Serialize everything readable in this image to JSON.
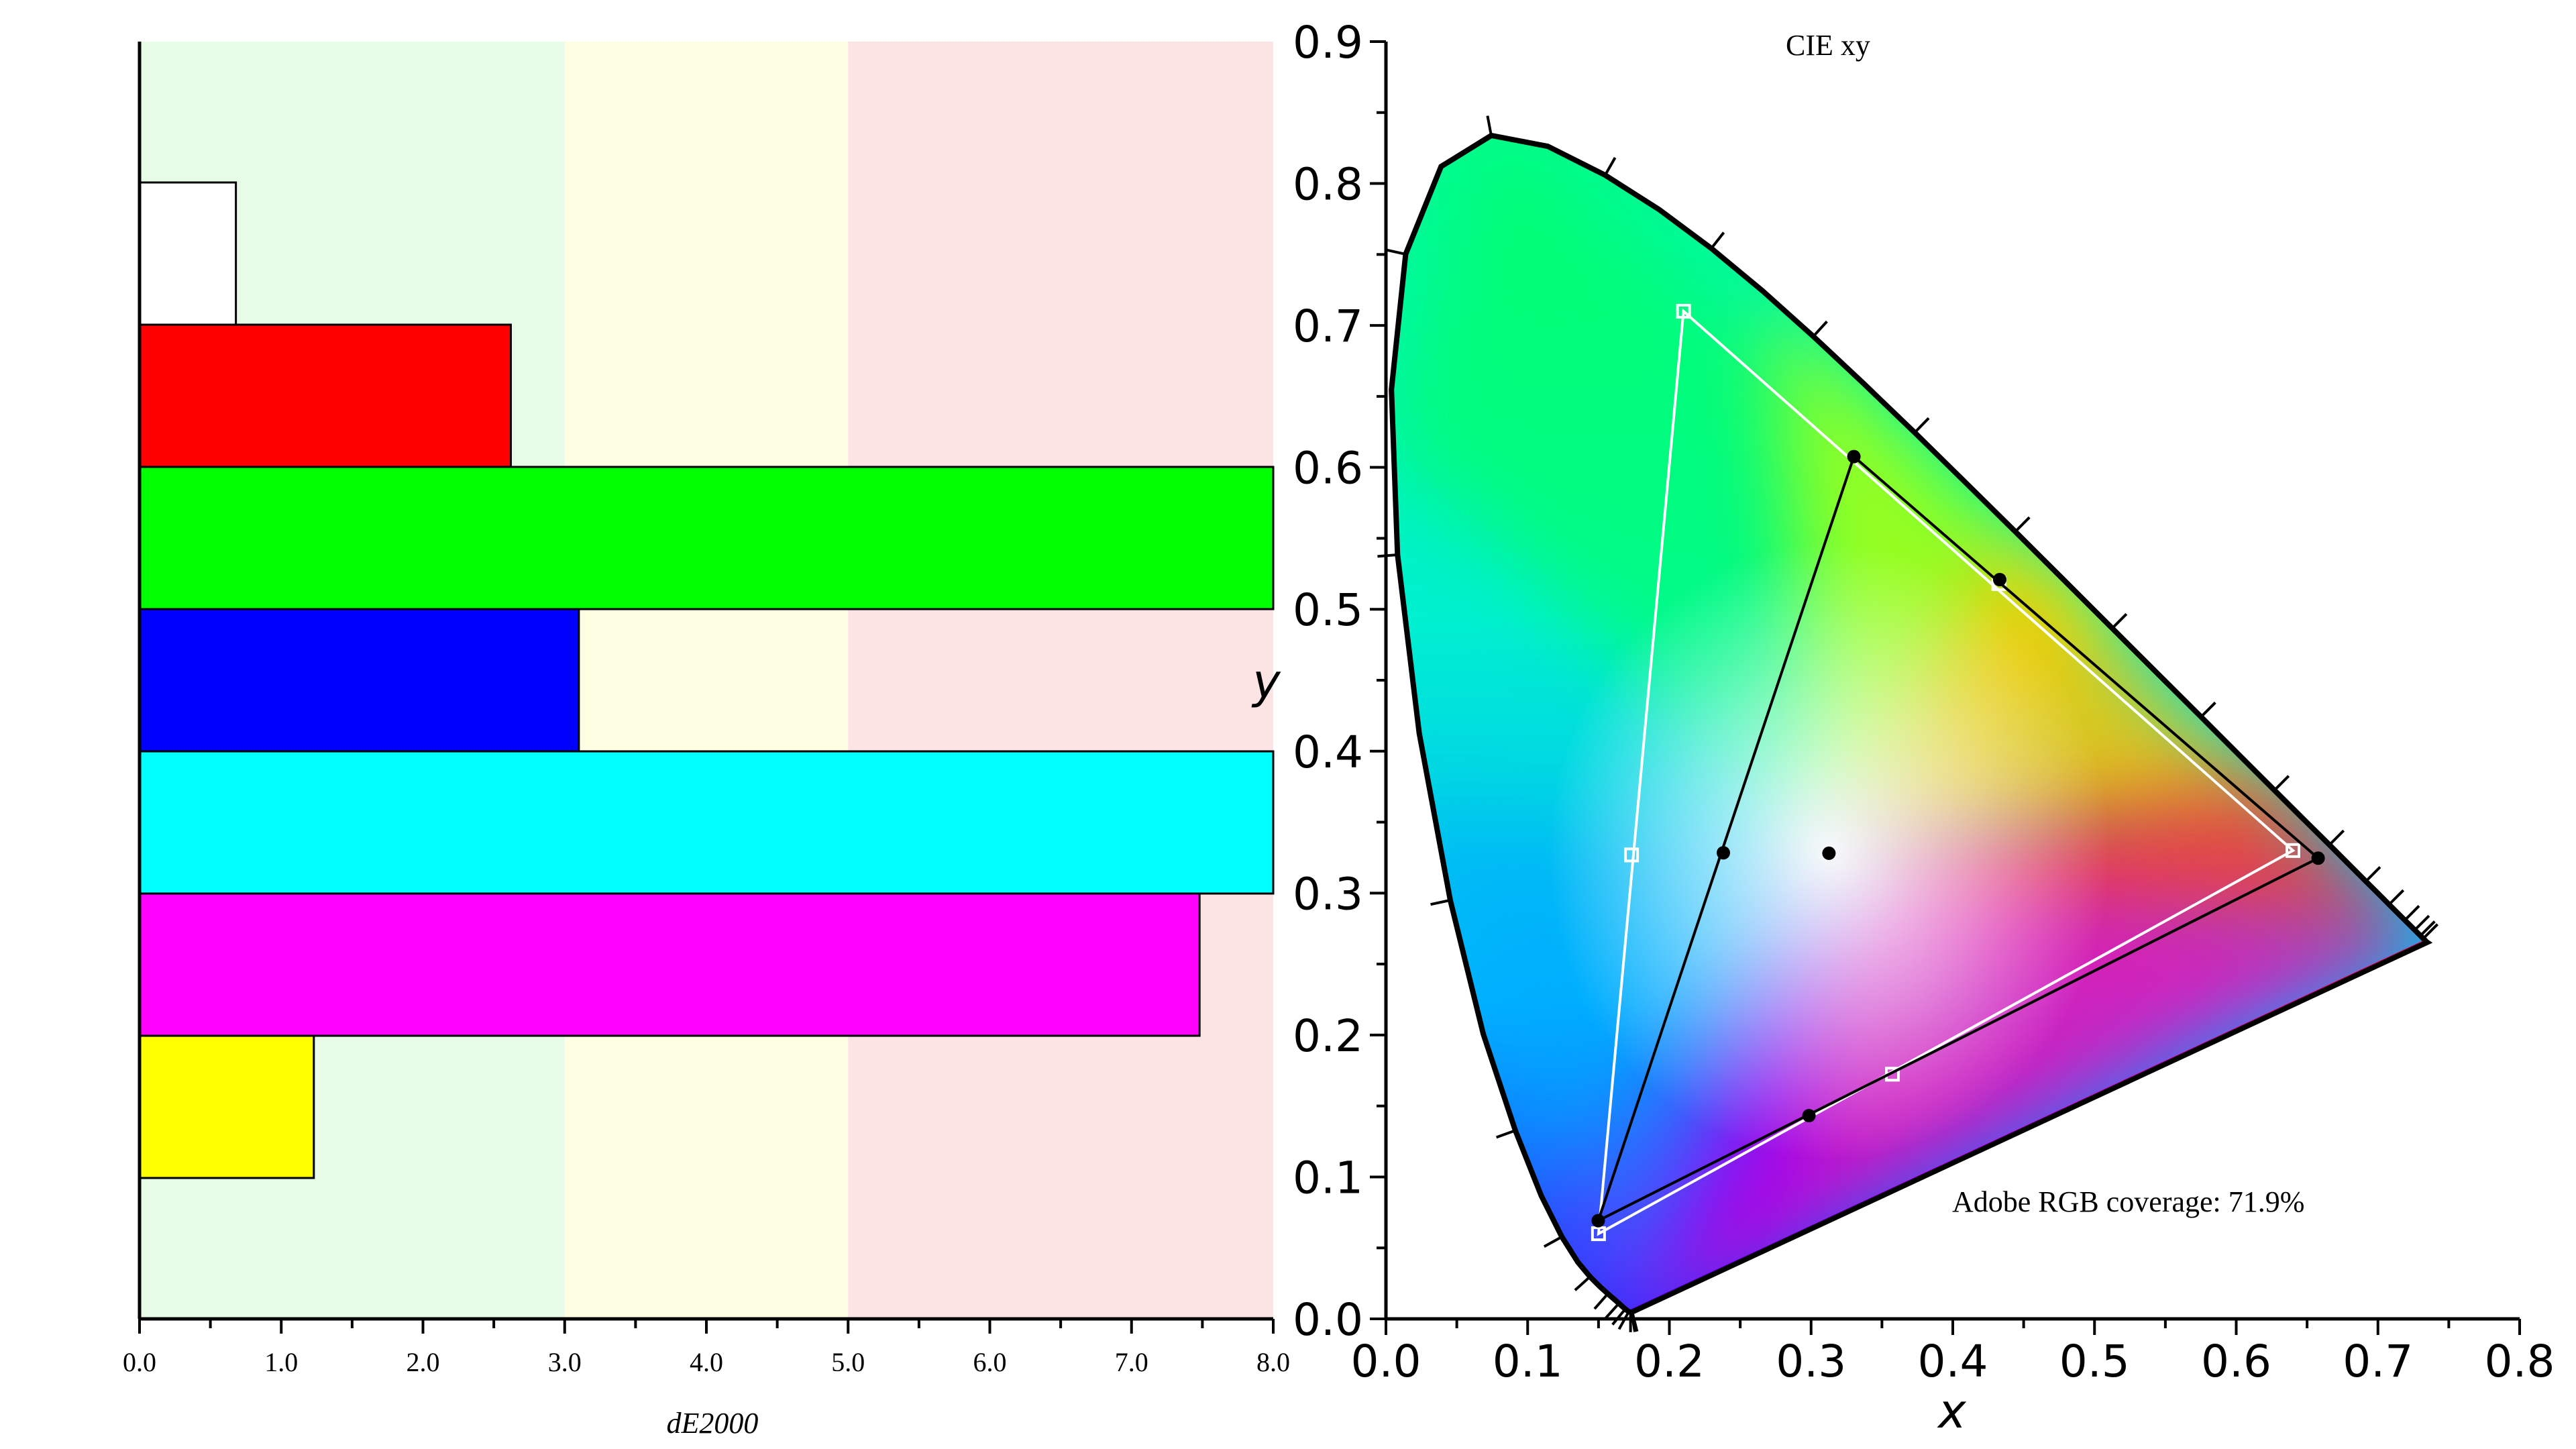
{
  "chart_data": [
    {
      "type": "bar",
      "orientation": "horizontal",
      "xlabel": "dE2000",
      "xlim": [
        0,
        8
      ],
      "x_ticks": [
        "0.0",
        "1.0",
        "2.0",
        "3.0",
        "4.0",
        "5.0",
        "6.0",
        "7.0",
        "8.0"
      ],
      "zones": [
        {
          "from": 0,
          "to": 3,
          "color": "#e6fce6"
        },
        {
          "from": 3,
          "to": 5,
          "color": "#fefee2"
        },
        {
          "from": 5,
          "to": 8,
          "color": "#fde4e4"
        }
      ],
      "bars": [
        {
          "color": "#ffffff",
          "value": 0.68
        },
        {
          "color": "#ff0000",
          "value": 2.62
        },
        {
          "color": "#00ff00",
          "value": 8.0
        },
        {
          "color": "#0000ff",
          "value": 3.1
        },
        {
          "color": "#00ffff",
          "value": 8.0
        },
        {
          "color": "#ff00ff",
          "value": 7.48
        },
        {
          "color": "#ffff00",
          "value": 1.23
        }
      ]
    },
    {
      "type": "scatter",
      "title": "CIE xy",
      "xlabel": "x",
      "ylabel": "y",
      "xlim": [
        0,
        0.8
      ],
      "ylim": [
        0,
        0.9
      ],
      "x_ticks": [
        "0.0",
        "0.1",
        "0.2",
        "0.3",
        "0.4",
        "0.5",
        "0.6",
        "0.7",
        "0.8"
      ],
      "y_ticks": [
        "0.0",
        "0.1",
        "0.2",
        "0.3",
        "0.4",
        "0.5",
        "0.6",
        "0.7",
        "0.8",
        "0.9"
      ],
      "annotation": "Adobe RGB coverage: 71.9%",
      "reference_gamut": {
        "color": "#ffffff",
        "primaries": [
          [
            0.64,
            0.33
          ],
          [
            0.21,
            0.71
          ],
          [
            0.15,
            0.06
          ]
        ],
        "secondaries": [
          [
            0.4325,
            0.5181
          ],
          [
            0.1733,
            0.3269
          ],
          [
            0.3574,
            0.1724
          ]
        ]
      },
      "measured_gamut": {
        "color": "#000000",
        "primaries": [
          [
            0.6578,
            0.3246
          ],
          [
            0.3302,
            0.6076
          ],
          [
            0.1498,
            0.0692
          ]
        ],
        "secondaries": [
          [
            0.4331,
            0.5209
          ],
          [
            0.2381,
            0.3284
          ],
          [
            0.2985,
            0.1432
          ]
        ],
        "white_point": [
          0.3126,
          0.3281
        ]
      }
    }
  ]
}
